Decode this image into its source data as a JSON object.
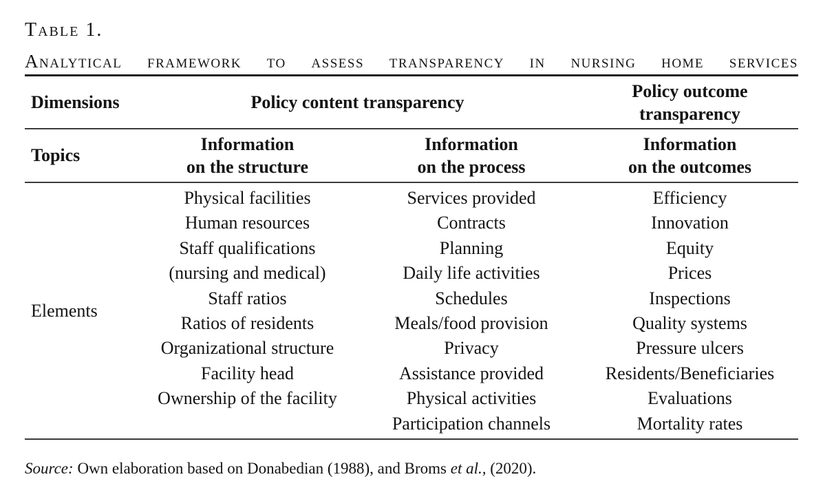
{
  "table": {
    "label": "Table 1.",
    "title_words": [
      "Analytical",
      "framework",
      "to",
      "assess",
      "transparency",
      "in",
      "nursing",
      "home",
      "services"
    ],
    "header": {
      "dimensions_label": "Dimensions",
      "policy_content": "Policy content transparency",
      "policy_outcome_line1": "Policy outcome",
      "policy_outcome_line2": "transparency",
      "topics_label": "Topics",
      "topic_structure_line1": "Information",
      "topic_structure_line2": "on the structure",
      "topic_process_line1": "Information",
      "topic_process_line2": "on the process",
      "topic_outcomes_line1": "Information",
      "topic_outcomes_line2": "on the outcomes"
    },
    "elements_label": "Elements",
    "columns": {
      "structure": [
        "Physical facilities",
        "Human resources",
        "Staff qualifications",
        "(nursing and medical)",
        "Staff ratios",
        "Ratios of residents",
        "Organizational structure",
        "Facility head",
        "Ownership of the facility"
      ],
      "process": [
        "Services provided",
        "Contracts",
        "Planning",
        "Daily life activities",
        "Schedules",
        "Meals/food provision",
        "Privacy",
        "Assistance provided",
        "Physical activities",
        "Participation channels"
      ],
      "outcomes": [
        "Efficiency",
        "Innovation",
        "Equity",
        "Prices",
        "Inspections",
        "Quality systems",
        "Pressure ulcers",
        "Residents/Beneficiaries",
        "Evaluations",
        "Mortality rates"
      ]
    }
  },
  "source": {
    "prefix": "Source:",
    "body": " Own elaboration based on Donabedian (1988), and Broms ",
    "etal": "et al.,",
    "suffix": " (2020)."
  }
}
